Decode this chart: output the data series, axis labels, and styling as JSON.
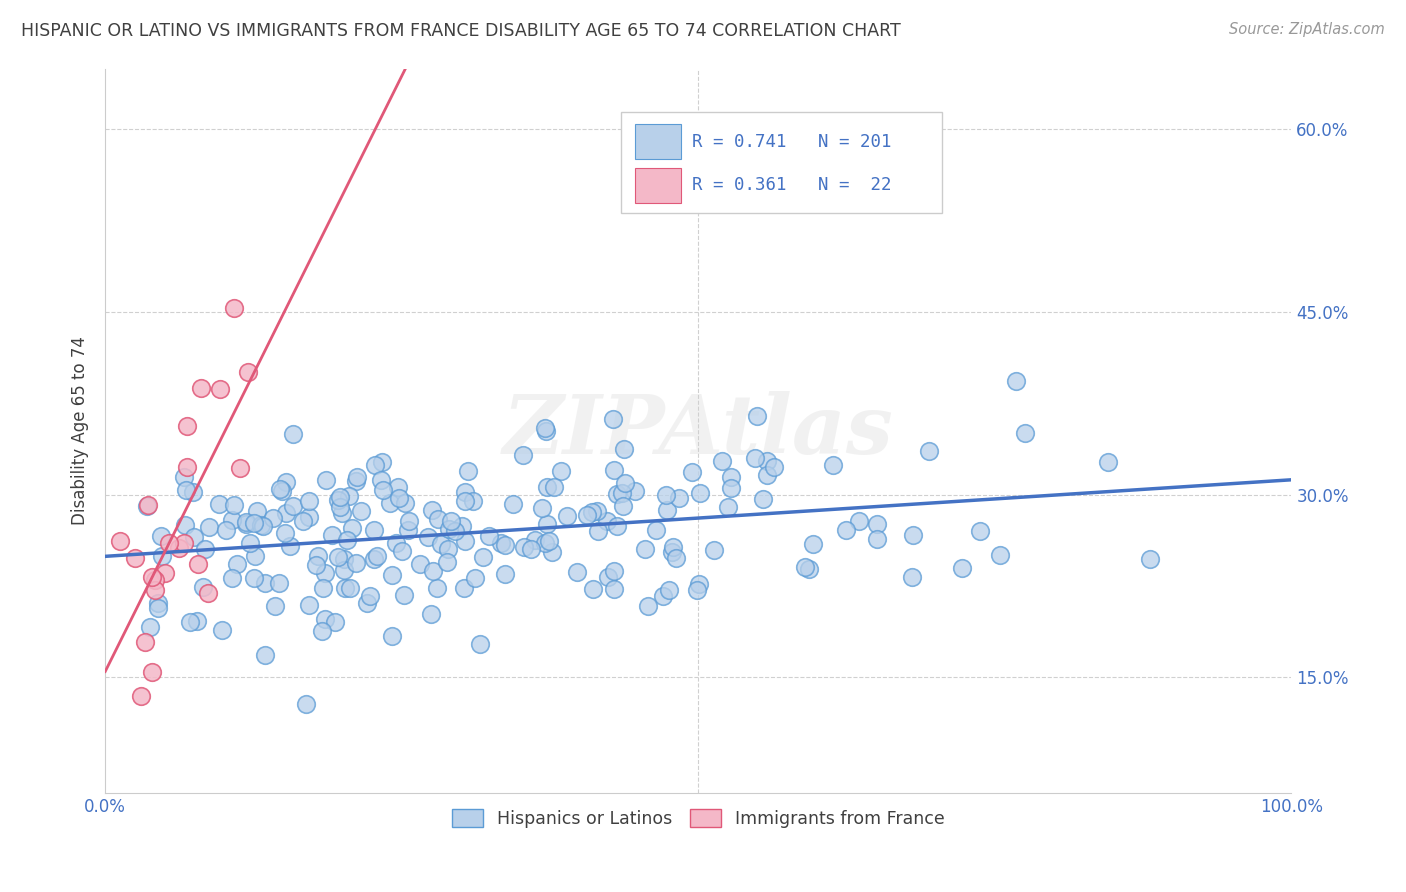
{
  "title": "HISPANIC OR LATINO VS IMMIGRANTS FROM FRANCE DISABILITY AGE 65 TO 74 CORRELATION CHART",
  "source": "Source: ZipAtlas.com",
  "ylabel": "Disability Age 65 to 74",
  "watermark": "ZIPAtlas",
  "blue_R": 0.741,
  "blue_N": 201,
  "pink_R": 0.361,
  "pink_N": 22,
  "legend_label_blue": "Hispanics or Latinos",
  "legend_label_pink": "Immigrants from France",
  "xlim": [
    0.0,
    1.0
  ],
  "ylim": [
    0.055,
    0.65
  ],
  "xticklabels": [
    "0.0%",
    "100.0%"
  ],
  "ytick_positions": [
    0.15,
    0.3,
    0.45,
    0.6
  ],
  "ytick_labels": [
    "15.0%",
    "30.0%",
    "45.0%",
    "60.0%"
  ],
  "blue_fill_color": "#b8d0ea",
  "blue_edge_color": "#5b9bd5",
  "pink_fill_color": "#f4b8c8",
  "pink_edge_color": "#e05878",
  "blue_line_color": "#4472c4",
  "pink_line_color": "#e05878",
  "title_color": "#404040",
  "source_color": "#999999",
  "legend_text_color": "#4472c4",
  "background_color": "#ffffff",
  "grid_color": "#d0d0d0",
  "seed": 42
}
